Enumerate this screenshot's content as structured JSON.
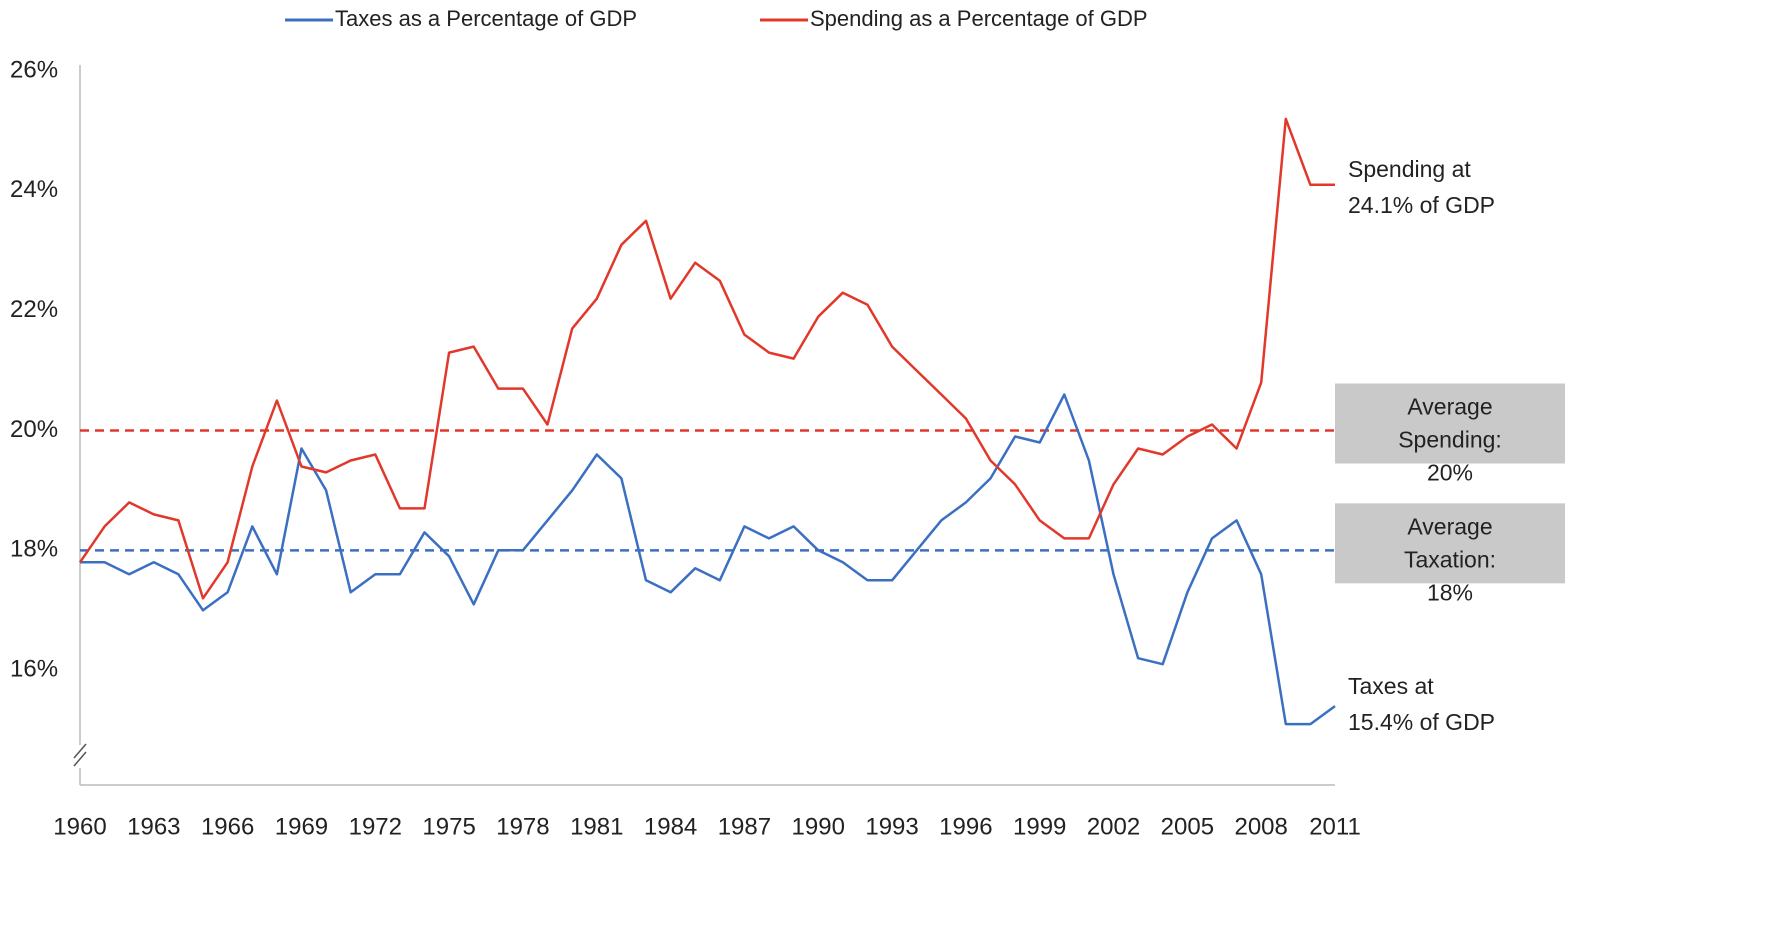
{
  "chart_data": {
    "type": "line",
    "x": [
      1960,
      1961,
      1962,
      1963,
      1964,
      1965,
      1966,
      1967,
      1968,
      1969,
      1970,
      1971,
      1972,
      1973,
      1974,
      1975,
      1976,
      1977,
      1978,
      1979,
      1980,
      1981,
      1982,
      1983,
      1984,
      1985,
      1986,
      1987,
      1988,
      1989,
      1990,
      1991,
      1992,
      1993,
      1994,
      1995,
      1996,
      1997,
      1998,
      1999,
      2000,
      2001,
      2002,
      2003,
      2004,
      2005,
      2006,
      2007,
      2008,
      2009,
      2010,
      2011
    ],
    "series": [
      {
        "name": "Taxes as a Percentage of GDP",
        "color": "#3b6fc2",
        "values": [
          17.8,
          17.8,
          17.6,
          17.8,
          17.6,
          17.0,
          17.3,
          18.4,
          17.6,
          19.7,
          19.0,
          17.3,
          17.6,
          17.6,
          18.3,
          17.9,
          17.1,
          18.0,
          18.0,
          18.5,
          19.0,
          19.6,
          19.2,
          17.5,
          17.3,
          17.7,
          17.5,
          18.4,
          18.2,
          18.4,
          18.0,
          17.8,
          17.5,
          17.5,
          18.0,
          18.5,
          18.8,
          19.2,
          19.9,
          19.8,
          20.6,
          19.5,
          17.6,
          16.2,
          16.1,
          17.3,
          18.2,
          18.5,
          17.6,
          15.1,
          15.1,
          15.4
        ],
        "end_label": [
          "Taxes at",
          "15.4% of GDP"
        ]
      },
      {
        "name": "Spending as a Percentage of GDP",
        "color": "#e2382b",
        "values": [
          17.8,
          18.4,
          18.8,
          18.6,
          18.5,
          17.2,
          17.8,
          19.4,
          20.5,
          19.4,
          19.3,
          19.5,
          19.6,
          18.7,
          18.7,
          21.3,
          21.4,
          20.7,
          20.7,
          20.1,
          21.7,
          22.2,
          23.1,
          23.5,
          22.2,
          22.8,
          22.5,
          21.6,
          21.3,
          21.2,
          21.9,
          22.3,
          22.1,
          21.4,
          21.0,
          20.6,
          20.2,
          19.5,
          19.1,
          18.5,
          18.2,
          18.2,
          19.1,
          19.7,
          19.6,
          19.9,
          20.1,
          19.7,
          20.8,
          25.2,
          24.1,
          24.1
        ],
        "end_label": [
          "Spending at",
          "24.1% of GDP"
        ]
      }
    ],
    "reference_lines": [
      {
        "value": 20,
        "color": "#e2382b",
        "label": [
          "Average",
          "Spending:",
          "20%"
        ]
      },
      {
        "value": 18,
        "color": "#3b6fc2",
        "label": [
          "Average",
          "Taxation:",
          "18%"
        ]
      }
    ],
    "xlim": [
      1960,
      2011
    ],
    "xticks": [
      1960,
      1963,
      1966,
      1969,
      1972,
      1975,
      1978,
      1981,
      1984,
      1987,
      1990,
      1993,
      1996,
      1999,
      2002,
      2005,
      2008,
      2011
    ],
    "ylim": [
      14,
      26
    ],
    "yticks": [
      {
        "value": 16,
        "label": "16%"
      },
      {
        "value": 18,
        "label": "18%"
      },
      {
        "value": 20,
        "label": "20%"
      },
      {
        "value": 22,
        "label": "22%"
      },
      {
        "value": 24,
        "label": "24%"
      },
      {
        "value": 26,
        "label": "26%"
      }
    ],
    "grid": false
  }
}
